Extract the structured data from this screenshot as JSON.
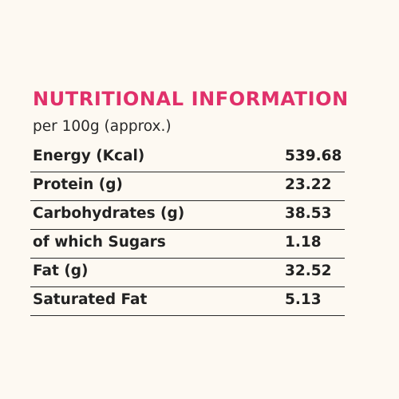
{
  "title": "NUTRITIONAL INFORMATION",
  "subtitle": "per 100g (approx.)",
  "rows": [
    {
      "label": "Energy (Kcal)",
      "value": "539.68"
    },
    {
      "label": "Protein (g)",
      "value": "23.22"
    },
    {
      "label": "Carbohydrates (g)",
      "value": "38.53"
    },
    {
      "label": "of which Sugars",
      "value": "1.18"
    },
    {
      "label": "Fat (g)",
      "value": "32.52"
    },
    {
      "label": "Saturated Fat",
      "value": "5.13"
    }
  ],
  "colors": {
    "background": "#fdf9f2",
    "title": "#e0306a",
    "text": "#222222",
    "rule": "#2a2a2a"
  }
}
